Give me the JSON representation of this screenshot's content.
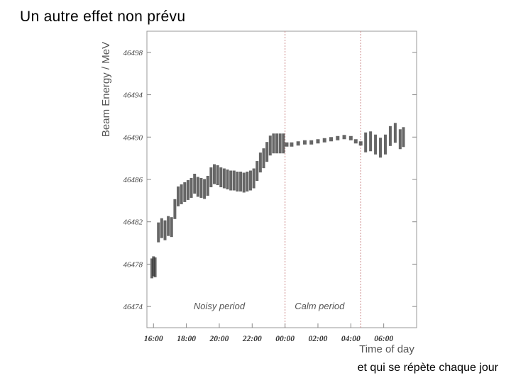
{
  "slide": {
    "title": "Un autre effet non prévu",
    "footnote": "et qui se répète chaque jour"
  },
  "chart_data": {
    "type": "scatter",
    "title": "",
    "xlabel": "Time of day",
    "ylabel": "Beam Energy / MeV",
    "xlim": [
      15.6,
      32.0
    ],
    "ylim": [
      46472,
      46500
    ],
    "y_ticks": [
      46474,
      46478,
      46482,
      46486,
      46490,
      46494,
      46498
    ],
    "x_ticks": [
      {
        "label": "16:00",
        "value": 16
      },
      {
        "label": "18:00",
        "value": 18
      },
      {
        "label": "20:00",
        "value": 20
      },
      {
        "label": "22:00",
        "value": 22
      },
      {
        "label": "00:00",
        "value": 24
      },
      {
        "label": "02:00",
        "value": 26
      },
      {
        "label": "04:00",
        "value": 28
      },
      {
        "label": "06:00",
        "value": 30
      }
    ],
    "period_boundaries": [
      24.0,
      28.6
    ],
    "annotations": [
      {
        "text": "Noisy period",
        "x": 20.0,
        "y": 46474
      },
      {
        "text": "Calm period",
        "x": 26.1,
        "y": 46474
      }
    ],
    "series": [
      {
        "color": "#333333",
        "points": [
          [
            15.9,
            46477.6
          ],
          [
            16.0,
            46477.8
          ],
          [
            16.1,
            46477.7
          ],
          [
            16.3,
            46481.0
          ],
          [
            16.5,
            46481.4
          ],
          [
            16.7,
            46481.2
          ],
          [
            16.9,
            46481.6
          ],
          [
            17.1,
            46481.5
          ],
          [
            17.3,
            46483.2
          ],
          [
            17.5,
            46484.4
          ],
          [
            17.7,
            46484.6
          ],
          [
            17.9,
            46484.8
          ],
          [
            18.1,
            46485.0
          ],
          [
            18.3,
            46485.2
          ],
          [
            18.5,
            46485.6
          ],
          [
            18.7,
            46485.3
          ],
          [
            18.9,
            46485.2
          ],
          [
            19.1,
            46485.1
          ],
          [
            19.3,
            46485.4
          ],
          [
            19.5,
            46486.2
          ],
          [
            19.7,
            46486.5
          ],
          [
            19.9,
            46486.4
          ],
          [
            20.1,
            46486.2
          ],
          [
            20.3,
            46486.1
          ],
          [
            20.5,
            46486.0
          ],
          [
            20.7,
            46485.9
          ],
          [
            20.9,
            46485.9
          ],
          [
            21.1,
            46485.8
          ],
          [
            21.3,
            46485.8
          ],
          [
            21.5,
            46485.7
          ],
          [
            21.7,
            46485.8
          ],
          [
            21.9,
            46485.9
          ],
          [
            22.1,
            46486.1
          ],
          [
            22.3,
            46486.8
          ],
          [
            22.5,
            46487.6
          ],
          [
            22.7,
            46488.0
          ],
          [
            22.9,
            46488.6
          ],
          [
            23.1,
            46489.2
          ],
          [
            23.3,
            46489.4
          ],
          [
            23.5,
            46489.4
          ],
          [
            23.7,
            46489.4
          ],
          [
            23.9,
            46489.4
          ],
          [
            24.1,
            46489.3
          ],
          [
            24.4,
            46489.3
          ],
          [
            24.8,
            46489.4
          ],
          [
            25.2,
            46489.5
          ],
          [
            25.6,
            46489.5
          ],
          [
            26.0,
            46489.6
          ],
          [
            26.4,
            46489.7
          ],
          [
            26.8,
            46489.8
          ],
          [
            27.2,
            46489.9
          ],
          [
            27.6,
            46490.0
          ],
          [
            28.0,
            46489.9
          ],
          [
            28.3,
            46489.6
          ],
          [
            28.6,
            46489.4
          ],
          [
            28.9,
            46489.5
          ],
          [
            29.2,
            46489.6
          ],
          [
            29.5,
            46489.3
          ],
          [
            29.8,
            46489.0
          ],
          [
            30.1,
            46489.3
          ],
          [
            30.4,
            46490.1
          ],
          [
            30.7,
            46490.4
          ],
          [
            31.0,
            46489.8
          ],
          [
            31.2,
            46490.0
          ]
        ]
      }
    ]
  }
}
